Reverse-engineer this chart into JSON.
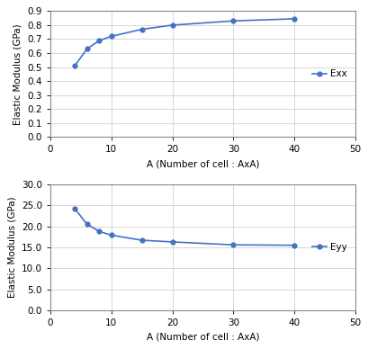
{
  "exx_x": [
    4,
    6,
    8,
    10,
    15,
    20,
    30,
    40
  ],
  "exx_y": [
    0.51,
    0.63,
    0.69,
    0.72,
    0.77,
    0.8,
    0.83,
    0.845
  ],
  "eyy_x": [
    4,
    6,
    8,
    10,
    15,
    20,
    30,
    40
  ],
  "eyy_y": [
    24.2,
    20.5,
    18.8,
    17.9,
    16.7,
    16.3,
    15.6,
    15.5
  ],
  "line_color": "#4472c4",
  "marker": "o",
  "markersize": 3.5,
  "linewidth": 1.2,
  "xlabel": "A (Number of cell : AxA)",
  "ylabel": "Elastic Modulus (GPa)",
  "exx_label": "Exx",
  "eyy_label": "Eyy",
  "exx_ylim": [
    0.0,
    0.9
  ],
  "eyy_ylim": [
    0.0,
    30.0
  ],
  "exx_yticks": [
    0.0,
    0.1,
    0.2,
    0.3,
    0.4,
    0.5,
    0.6,
    0.7,
    0.8,
    0.9
  ],
  "eyy_yticks": [
    0.0,
    5.0,
    10.0,
    15.0,
    20.0,
    25.0,
    30.0
  ],
  "xlim": [
    0,
    50
  ],
  "xticks": [
    0,
    10,
    20,
    30,
    40,
    50
  ],
  "xlabel_fontsize": 7.5,
  "ylabel_fontsize": 7.5,
  "tick_fontsize": 7.5,
  "legend_fontsize": 7.5,
  "background_color": "#ffffff",
  "grid_color": "#c8c8c8",
  "spine_color": "#888888"
}
